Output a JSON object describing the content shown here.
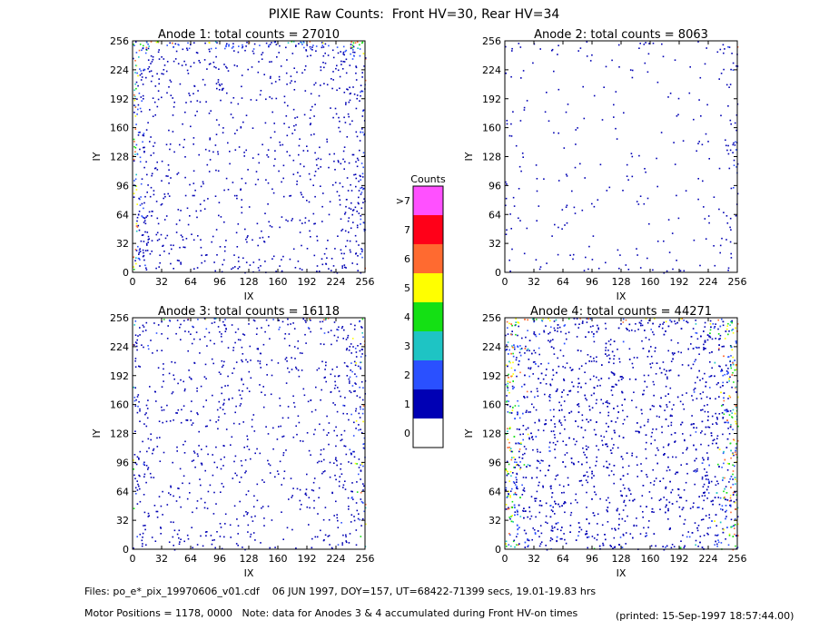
{
  "title": "PIXIE Raw Counts:  Front HV=30, Rear HV=34",
  "chart_data": [
    {
      "type": "heatmap",
      "title": "Anode 1: total counts = 27010",
      "xlabel": "IX",
      "ylabel": "IY",
      "xlim": [
        0,
        256
      ],
      "ylim": [
        0,
        256
      ],
      "xticks": [
        0,
        32,
        64,
        96,
        128,
        160,
        192,
        224,
        256
      ],
      "yticks": [
        0,
        32,
        64,
        96,
        128,
        160,
        192,
        224,
        256
      ]
    },
    {
      "type": "heatmap",
      "title": "Anode 2: total counts = 8063",
      "xlabel": "IX",
      "ylabel": "IY",
      "xlim": [
        0,
        256
      ],
      "ylim": [
        0,
        256
      ],
      "xticks": [
        0,
        32,
        64,
        96,
        128,
        160,
        192,
        224,
        256
      ],
      "yticks": [
        0,
        32,
        64,
        96,
        128,
        160,
        192,
        224,
        256
      ]
    },
    {
      "type": "heatmap",
      "title": "Anode 3: total counts = 16118",
      "xlabel": "IX",
      "ylabel": "IY",
      "xlim": [
        0,
        256
      ],
      "ylim": [
        0,
        256
      ],
      "xticks": [
        0,
        32,
        64,
        96,
        128,
        160,
        192,
        224,
        256
      ],
      "yticks": [
        0,
        32,
        64,
        96,
        128,
        160,
        192,
        224,
        256
      ]
    },
    {
      "type": "heatmap",
      "title": "Anode 4: total counts = 44271",
      "xlabel": "IX",
      "ylabel": "IY",
      "xlim": [
        0,
        256
      ],
      "ylim": [
        0,
        256
      ],
      "xticks": [
        0,
        32,
        64,
        96,
        128,
        160,
        192,
        224,
        256
      ],
      "yticks": [
        0,
        32,
        64,
        96,
        128,
        160,
        192,
        224,
        256
      ]
    }
  ],
  "colorbar": {
    "title": "Counts",
    "categories": [
      "0",
      "1",
      "2",
      "3",
      "4",
      "5",
      "6",
      "7",
      ">7"
    ],
    "colors": [
      "#ffffff",
      "#0000b4",
      "#2a50ff",
      "#1ec4c4",
      "#14e014",
      "#ffff00",
      "#ff6a30",
      "#ff0018",
      "#ff50ff"
    ]
  },
  "footer": {
    "files": "Files: po_e*_pix_19970606_v01.cdf    06 JUN 1997, DOY=157, UT=68422-71399 secs, 19.01-19.83 hrs",
    "motor": "Motor Positions = 1178, 0000   Note: data for Anodes 3 & 4 accumulated during Front HV-on times",
    "printed": "(printed: 15-Sep-1997 18:57:44.00)"
  }
}
